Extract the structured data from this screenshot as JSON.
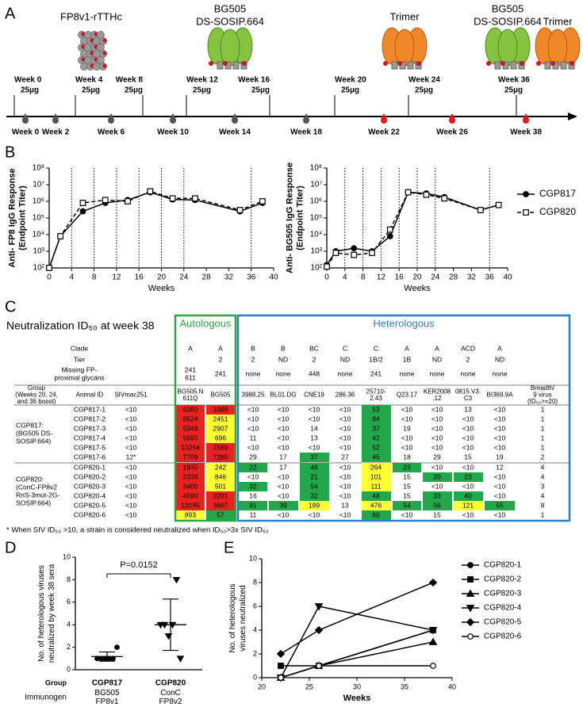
{
  "panel_labels": [
    "A",
    "B",
    "C",
    "D",
    "E"
  ],
  "timeline": {
    "immunogens": [
      [
        "FP8v1-rTTHc"
      ],
      [
        "BG505",
        "DS-SOSIP.664"
      ],
      [
        "Trimer"
      ],
      [
        "BG505",
        "DS-SOSIP.664"
      ],
      [
        "Trimer"
      ]
    ],
    "immunizations": [
      {
        "week": "Week 0",
        "dose": "25µg"
      },
      {
        "week": "Week 4",
        "dose": "25µg"
      },
      {
        "week": "Week 8",
        "dose": "25µg"
      },
      {
        "week": "Week 12",
        "dose": "25µg"
      },
      {
        "week": "Week 16",
        "dose": "25µg"
      },
      {
        "week": "Week 20",
        "dose": "25µg"
      },
      {
        "week": "Week 24",
        "dose": "25µg"
      },
      {
        "week": "Week 36",
        "dose": "25µg"
      }
    ],
    "bleeds": [
      {
        "label": "Week 0",
        "color": "#555555"
      },
      {
        "label": "Week 2",
        "color": "#555555"
      },
      {
        "label": "Week 6",
        "color": "#555555"
      },
      {
        "label": "Week 10",
        "color": "#555555"
      },
      {
        "label": "Week 14",
        "color": "#555555"
      },
      {
        "label": "Week 18",
        "color": "#555555"
      },
      {
        "label": "Week 22",
        "color": "#e41a1c"
      },
      {
        "label": "Week 26",
        "color": "#e41a1c"
      },
      {
        "label": "Week 38",
        "color": "#e41a1c"
      }
    ]
  },
  "chart_data": [
    {
      "type": "line",
      "log": true,
      "ylabel": [
        "Anti- FP8 IgG Response",
        "(Endpoint Titer)"
      ],
      "xlabel": "Weeks",
      "x": [
        0,
        2,
        6,
        10,
        14,
        18,
        22,
        26,
        34,
        38
      ],
      "xlim": [
        0,
        40
      ],
      "xticks": [
        0,
        4,
        8,
        12,
        16,
        20,
        24,
        28,
        32,
        36,
        40
      ],
      "ylim": [
        100,
        100000000
      ],
      "yticks": [
        {
          "value": 100,
          "label": "10²"
        },
        {
          "value": 1000,
          "label": "10³"
        },
        {
          "value": 10000,
          "label": "10⁴"
        },
        {
          "value": 100000,
          "label": "10⁵"
        },
        {
          "value": 1000000,
          "label": "10⁶"
        },
        {
          "value": 10000000,
          "label": "10⁷"
        },
        {
          "value": 100000000,
          "label": "10⁸"
        }
      ],
      "vlines": [
        4,
        8,
        12,
        16,
        20,
        24,
        36
      ],
      "series": [
        {
          "color": "#000000",
          "marker": "circle",
          "marker_fill": "filled",
          "line_style": "solid",
          "values": [
            100,
            8000,
            250000,
            800000,
            1200000,
            3500000,
            1300000,
            1200000,
            250000,
            800000
          ]
        },
        {
          "color": "#000000",
          "marker": "square",
          "marker_fill": "open",
          "line_style": "dashed",
          "values": [
            100,
            8000,
            800000,
            1200000,
            1000000,
            4000000,
            1500000,
            1500000,
            300000,
            1000000
          ]
        }
      ]
    },
    {
      "type": "line",
      "log": true,
      "ylabel": [
        "Anti- BG505 IgG Response",
        "(Endpoint Titer)"
      ],
      "xlabel": "Weeks",
      "x": [
        0,
        2,
        6,
        10,
        14,
        18,
        22,
        26,
        34,
        38
      ],
      "xlim": [
        0,
        40
      ],
      "xticks": [
        0,
        4,
        8,
        12,
        16,
        20,
        24,
        28,
        32,
        36,
        40
      ],
      "ylim": [
        100,
        100000000
      ],
      "yticks": [
        {
          "value": 100,
          "label": "10²"
        },
        {
          "value": 1000,
          "label": "10³"
        },
        {
          "value": 10000,
          "label": "10⁴"
        },
        {
          "value": 100000,
          "label": "10⁵"
        },
        {
          "value": 1000000,
          "label": "10⁶"
        },
        {
          "value": 10000000,
          "label": "10⁷"
        },
        {
          "value": 100000000,
          "label": "10⁸"
        }
      ],
      "vlines": [
        4,
        8,
        12,
        16,
        20,
        24,
        36
      ],
      "legend": "right",
      "series": [
        {
          "name": "CGP817",
          "color": "#000000",
          "marker": "circle",
          "marker_fill": "filled",
          "line_style": "solid",
          "values": [
            150,
            1000,
            1500,
            1000,
            8000,
            3500000,
            3000000,
            1800000,
            300000,
            600000
          ]
        },
        {
          "name": "CGP820",
          "color": "#000000",
          "marker": "square",
          "marker_fill": "open",
          "line_style": "dashed",
          "values": [
            120,
            800,
            600,
            800,
            20000,
            3500000,
            2500000,
            1500000,
            300000,
            600000
          ]
        }
      ]
    },
    {
      "type": "dot",
      "ylabel": [
        "No. of heterologous viruses",
        "neutralized by week 38 sera"
      ],
      "ylim": [
        0,
        10
      ],
      "yticks": [
        0,
        2,
        4,
        6,
        8,
        10
      ],
      "category_title": "Group",
      "categories": [
        "CGP817",
        "CGP820"
      ],
      "subcategory_title": "Immunogen",
      "subcategories": [
        [
          "BG505",
          "FP8v1"
        ],
        [
          "ConC",
          "FP8v2"
        ]
      ],
      "annotation": "P=0.0152",
      "color": "#000000",
      "groups": [
        {
          "marker": "circle",
          "values": [
            1,
            1,
            1,
            1,
            1,
            2
          ],
          "mean": 1.17,
          "sd": 0.41
        },
        {
          "marker": "triangle-down",
          "values": [
            4,
            4,
            3,
            4,
            8,
            1
          ],
          "mean": 4,
          "sd": 2.28
        }
      ]
    },
    {
      "type": "line",
      "log": false,
      "ylabel": [
        "No. of heterologous",
        "viruses neutralized"
      ],
      "xlabel": "Weeks",
      "x": [
        22,
        26,
        38
      ],
      "xlim": [
        20,
        40
      ],
      "xticks": [
        20,
        25,
        30,
        35,
        40
      ],
      "ylim": [
        0,
        10
      ],
      "yticks": [
        0,
        2,
        4,
        6,
        8,
        10
      ],
      "legend": "right",
      "series": [
        {
          "name": "CGP820-1",
          "color": "#000000",
          "marker": "circle",
          "marker_fill": "filled",
          "line_style": "solid",
          "values": [
            0,
            1,
            4
          ]
        },
        {
          "name": "CGP820-2",
          "color": "#000000",
          "marker": "square",
          "marker_fill": "filled",
          "line_style": "solid",
          "values": [
            1,
            1,
            4
          ]
        },
        {
          "name": "CGP820-3",
          "color": "#000000",
          "marker": "triangle",
          "marker_fill": "filled",
          "line_style": "solid",
          "values": [
            0,
            1,
            3
          ]
        },
        {
          "name": "CGP820-4",
          "color": "#000000",
          "marker": "triangle-down",
          "marker_fill": "filled",
          "line_style": "solid",
          "values": [
            0,
            6,
            4
          ]
        },
        {
          "name": "CGP820-5",
          "color": "#000000",
          "marker": "diamond",
          "marker_fill": "filled",
          "line_style": "solid",
          "values": [
            2,
            4,
            8
          ]
        },
        {
          "name": "CGP820-6",
          "color": "#000000",
          "marker": "circle",
          "marker_fill": "open",
          "line_style": "solid",
          "values": [
            0,
            1,
            1
          ]
        }
      ]
    }
  ],
  "table": {
    "title": "Neutralization ID₅₀ at week 38",
    "autologous_label": "Autologous",
    "heterologous_label": "Heterologous",
    "palette": {
      "r": "#e8231f",
      "y": "#ffff33",
      "g": "#22a84a"
    },
    "info_rows": [
      {
        "label": [
          "Clade"
        ],
        "cells": [
          [
            "A"
          ],
          [
            "A"
          ],
          [
            "B"
          ],
          [
            "B"
          ],
          [
            "BC"
          ],
          [
            "C"
          ],
          [
            "C"
          ],
          [
            "A"
          ],
          [
            "A"
          ],
          [
            "ACD"
          ],
          [
            "A"
          ]
        ]
      },
      {
        "label": [
          "Tier"
        ],
        "cells": [
          null,
          [
            "2"
          ],
          [
            "2"
          ],
          [
            "ND"
          ],
          [
            "2"
          ],
          [
            "ND"
          ],
          [
            "1B/2"
          ],
          [
            "1B"
          ],
          [
            "ND"
          ],
          [
            "2"
          ],
          [
            "ND"
          ]
        ]
      },
      {
        "label": [
          "Missing FP-",
          "proximal glycans"
        ],
        "cells": [
          [
            "241",
            "611"
          ],
          [
            "241"
          ],
          [
            "none"
          ],
          [
            "none"
          ],
          [
            "448"
          ],
          [
            "none"
          ],
          [
            "241"
          ],
          [
            "none"
          ],
          [
            "none"
          ],
          [
            "none"
          ],
          [
            "none"
          ]
        ]
      }
    ],
    "header": [
      [
        "Group",
        "(Weeks 20, 24,",
        "and 36 boost)"
      ],
      [
        "Animal ID"
      ],
      [
        "SIVmac251"
      ],
      [
        "BG505.N",
        "611Q"
      ],
      [
        "BG505"
      ],
      [
        "3988.25"
      ],
      [
        "BL01.DG"
      ],
      [
        "CNE19"
      ],
      [
        "286.36"
      ],
      [
        "25710-",
        "2.43"
      ],
      [
        "Q23.17"
      ],
      [
        "KER2008",
        ".12"
      ],
      [
        "0815.V3.",
        "C3"
      ],
      [
        "BI369.9A"
      ],
      [
        "Breadth/",
        "9 virus",
        "(ID₅₀>=20)"
      ]
    ],
    "groups": [
      {
        "label": [
          "CGP817:",
          "(BG505 DS-",
          "SOSIP.664)"
        ],
        "rows": [
          {
            "cells": [
              "CGP817-1",
              "<10",
              "6380",
              "1068",
              "<10",
              "<10",
              "<10",
              "<10",
              "53",
              "<10",
              "<10",
              "13",
              "<10",
              "1"
            ],
            "colors": [
              null,
              null,
              "r",
              "r",
              null,
              null,
              null,
              null,
              "g",
              null,
              null,
              null,
              null,
              null
            ]
          },
          {
            "cells": [
              "CGP817-2",
              "<10",
              "8524",
              "2451",
              "<10",
              "<10",
              "<10",
              "<10",
              "84",
              "<10",
              "<10",
              "<10",
              "<10",
              "1"
            ],
            "colors": [
              null,
              null,
              "r",
              "y",
              null,
              null,
              null,
              null,
              "g",
              null,
              null,
              null,
              null,
              null
            ]
          },
          {
            "cells": [
              "CGP817-3",
              "<10",
              "6349",
              "2907",
              "<10",
              "<10",
              "14",
              "<10",
              "37",
              "19",
              "<10",
              "<10",
              "<10",
              "1"
            ],
            "colors": [
              null,
              null,
              "r",
              "y",
              null,
              null,
              null,
              null,
              "g",
              null,
              null,
              null,
              null,
              null
            ]
          },
          {
            "cells": [
              "CGP817-4",
              "<10",
              "5595",
              "696",
              "11",
              "<10",
              "13",
              "<10",
              "42",
              "<10",
              "<10",
              "<10",
              "<10",
              "1"
            ],
            "colors": [
              null,
              null,
              "r",
              "y",
              null,
              null,
              null,
              null,
              "g",
              null,
              null,
              null,
              null,
              null
            ]
          },
          {
            "cells": [
              "CGP817-5",
              "<10",
              "10264",
              "7569",
              "<10",
              "<10",
              "<10",
              "<10",
              "52",
              "<10",
              "<10",
              "<10",
              "<10",
              "1"
            ],
            "colors": [
              null,
              null,
              "r",
              "r",
              null,
              null,
              null,
              null,
              "g",
              null,
              null,
              null,
              null,
              null
            ]
          },
          {
            "cells": [
              "CGP817-6",
              "12*",
              "7709",
              "7285",
              "29",
              "17",
              "37",
              "27",
              "45",
              "18",
              "29",
              "15",
              "19",
              "2"
            ],
            "colors": [
              null,
              null,
              "r",
              "r",
              null,
              null,
              "g",
              null,
              "g",
              null,
              null,
              null,
              null,
              null
            ]
          }
        ]
      },
      {
        "label": [
          "CGP820:",
          "(ConC-FP8v2",
          "RnS-3mut-2G-",
          "SOSIP.664)"
        ],
        "rows": [
          {
            "cells": [
              "CGP820-1",
              "<10",
              "1935",
              "242",
              "22",
              "17",
              "48",
              "<10",
              "264",
              "23",
              "<10",
              "<10",
              "12",
              "4"
            ],
            "colors": [
              null,
              null,
              "r",
              "y",
              "g",
              null,
              "g",
              null,
              "y",
              "g",
              null,
              null,
              null,
              null
            ]
          },
          {
            "cells": [
              "CGP820-2",
              "<10",
              "2339",
              "846",
              "<10",
              "<10",
              "21",
              "<10",
              "101",
              "15",
              "20",
              "23",
              "<10",
              "4"
            ],
            "colors": [
              null,
              null,
              "r",
              "y",
              null,
              null,
              "g",
              null,
              "y",
              null,
              "g",
              "g",
              null,
              null
            ]
          },
          {
            "cells": [
              "CGP820-3",
              "<10",
              "3400",
              "501",
              "32",
              "<10",
              "54",
              "<10",
              "111",
              "15",
              "<10",
              "<10",
              "<10",
              "3"
            ],
            "colors": [
              null,
              null,
              "r",
              "y",
              "g",
              null,
              "g",
              null,
              "y",
              null,
              null,
              null,
              null,
              null
            ]
          },
          {
            "cells": [
              "CGP820-4",
              "<10",
              "4590",
              "2201",
              "16",
              "<10",
              "32",
              "<10",
              "48",
              "15",
              "33",
              "40",
              "<10",
              "4"
            ],
            "colors": [
              null,
              null,
              "r",
              "r",
              null,
              null,
              "g",
              null,
              "g",
              null,
              "g",
              "g",
              null,
              null
            ]
          },
          {
            "cells": [
              "CGP820-5",
              "<10",
              "12085",
              "3607",
              "91",
              "39",
              "189",
              "13",
              "476",
              "54",
              "56",
              "121",
              "55",
              "8"
            ],
            "colors": [
              null,
              null,
              "r",
              "r",
              "g",
              "g",
              "y",
              null,
              "y",
              "g",
              "g",
              "y",
              "g",
              null
            ]
          },
          {
            "cells": [
              "CGP820-6",
              "<10",
              "893",
              "57",
              "11",
              "<10",
              "<10",
              "<10",
              "60",
              "<10",
              "15",
              "<10",
              "<10",
              "1"
            ],
            "colors": [
              null,
              null,
              "y",
              "g",
              null,
              null,
              null,
              null,
              "g",
              null,
              null,
              null,
              null,
              null
            ]
          }
        ]
      }
    ],
    "footnote": "* When SIV ID₅₀ >10, a strain is considered neutralized when ID₅₀>3x SIV ID₅₀"
  }
}
